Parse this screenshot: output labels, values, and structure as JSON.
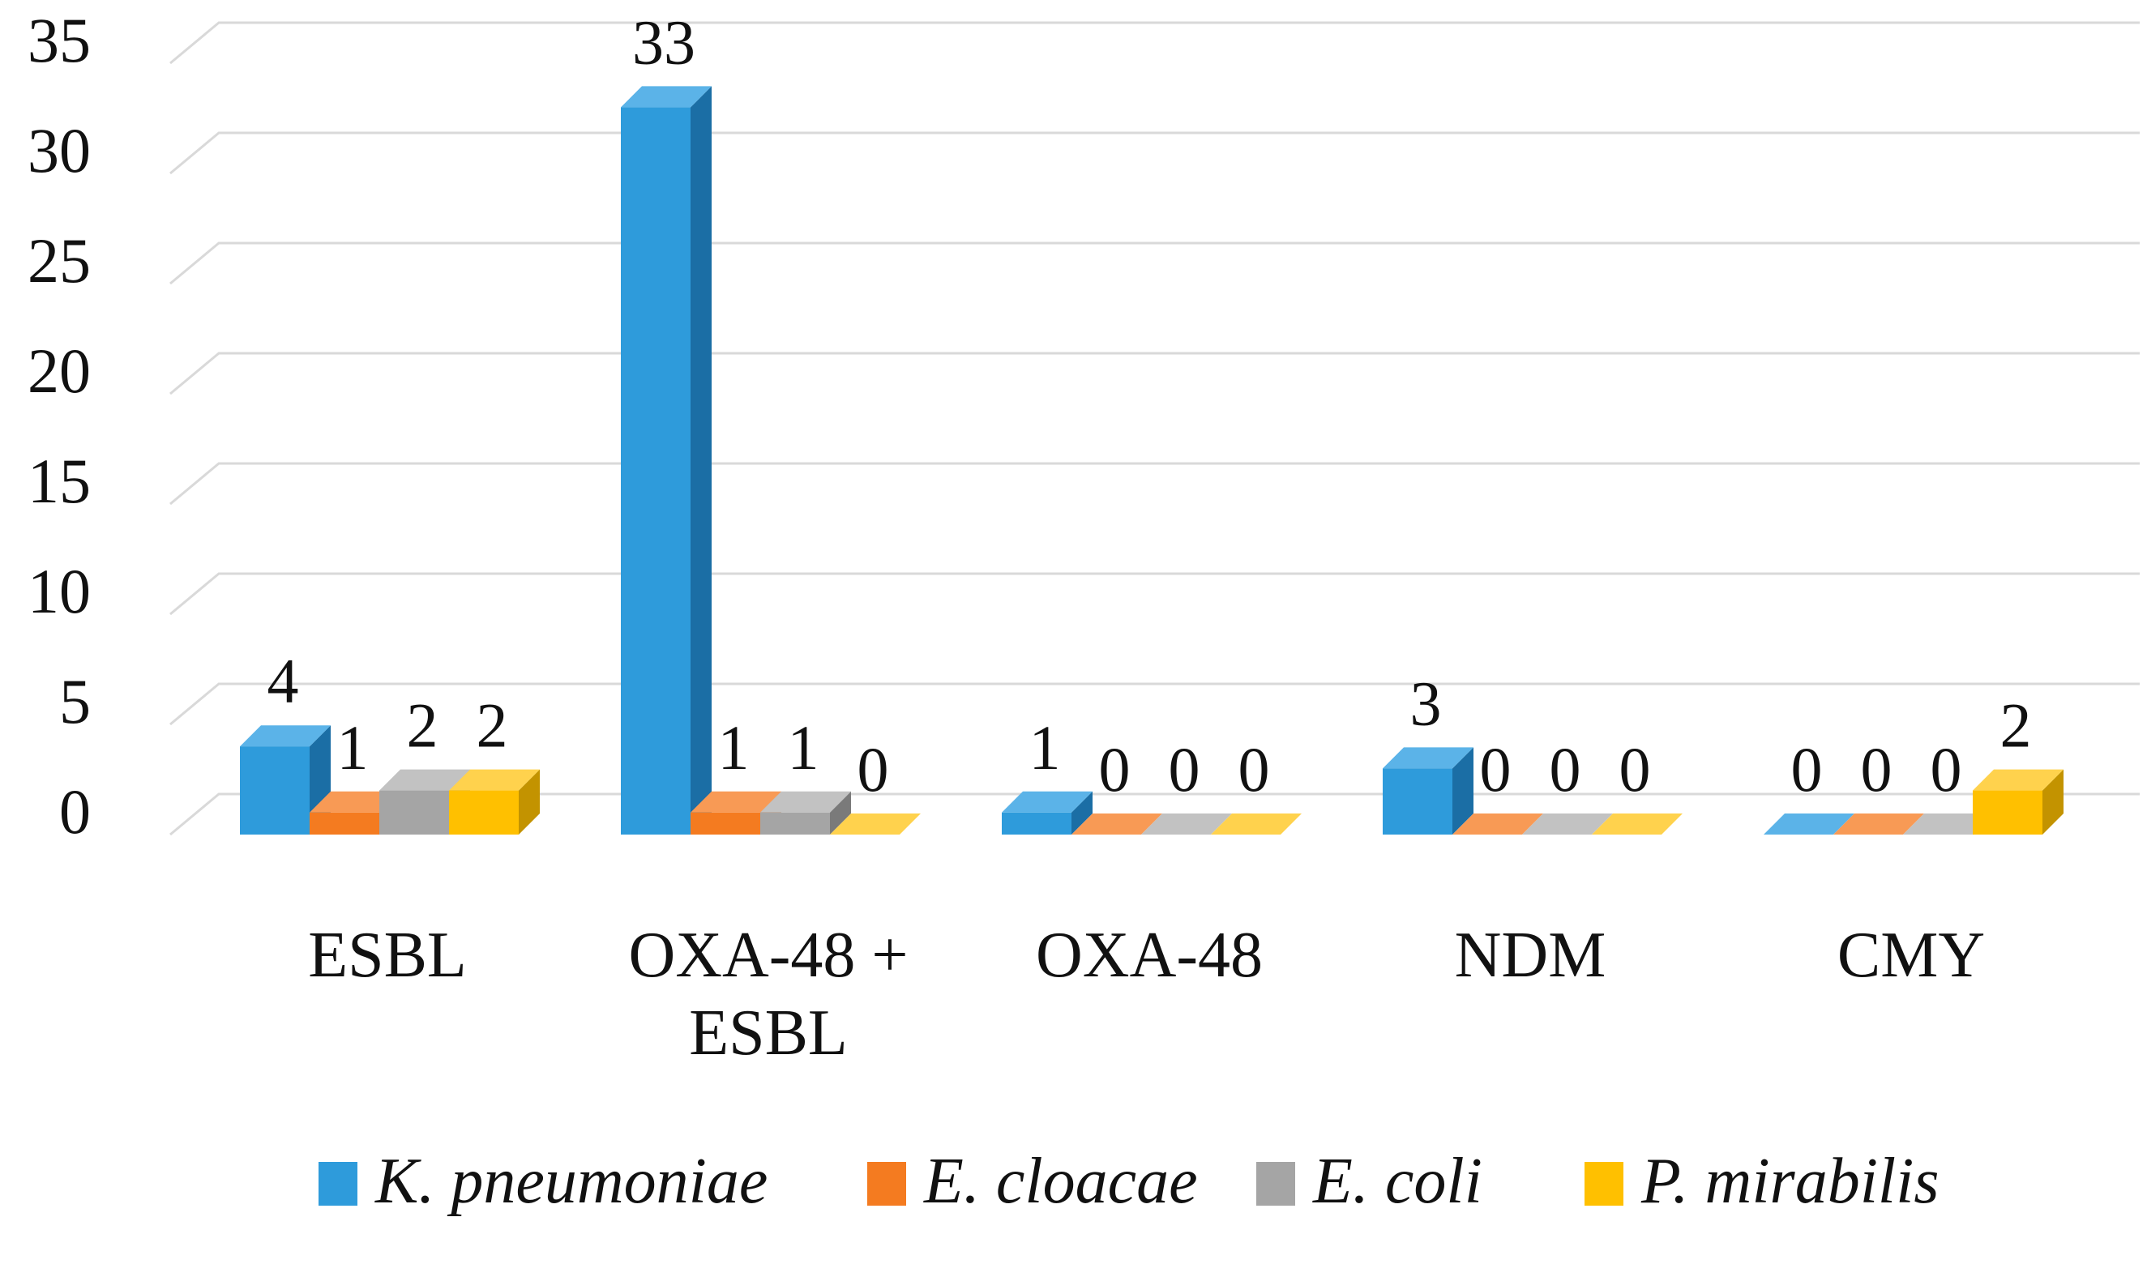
{
  "chart_data": {
    "type": "bar",
    "style": "3d-clustered-column",
    "title": "",
    "xlabel": "",
    "ylabel": "",
    "ylim": [
      0,
      35
    ],
    "yticks": [
      0,
      5,
      10,
      15,
      20,
      25,
      30,
      35
    ],
    "grid": true,
    "legend_position": "bottom",
    "categories": [
      {
        "lines": [
          "ESBL"
        ]
      },
      {
        "lines": [
          "OXA-48 +",
          "ESBL"
        ]
      },
      {
        "lines": [
          "OXA-48"
        ]
      },
      {
        "lines": [
          "NDM"
        ]
      },
      {
        "lines": [
          "CMY"
        ]
      }
    ],
    "series": [
      {
        "name": "K. pneumoniae",
        "color": "#2E9BDB",
        "side": "#1B6EA5",
        "top": "#5BB3E8",
        "values": [
          4,
          33,
          1,
          3,
          0
        ]
      },
      {
        "name": "E. cloacae",
        "color": "#F47B20",
        "side": "#B9551A",
        "top": "#F89A55",
        "values": [
          1,
          1,
          0,
          0,
          0
        ]
      },
      {
        "name": "E. coli",
        "color": "#A5A5A5",
        "side": "#7A7A7A",
        "top": "#C2C2C2",
        "values": [
          2,
          1,
          0,
          0,
          0
        ]
      },
      {
        "name": "P. mirabilis",
        "color": "#FFC000",
        "side": "#C39300",
        "top": "#FFD24D",
        "values": [
          2,
          0,
          0,
          0,
          2
        ]
      }
    ]
  }
}
